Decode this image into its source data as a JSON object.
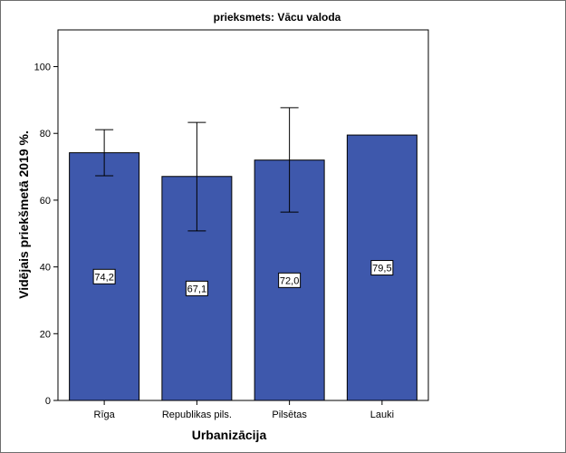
{
  "chart_data": {
    "type": "bar",
    "title": "prieksmets: Vācu valoda",
    "xlabel": "Urbanizācija",
    "ylabel": "Vidējais priekšmetā 2019 %.",
    "categories": [
      "Rīga",
      "Republikas pils.",
      "Pilsētas",
      "Lauki"
    ],
    "values": [
      74.2,
      67.1,
      72.0,
      79.5
    ],
    "data_labels": [
      "74,2",
      "67,1",
      "72,0",
      "79,5"
    ],
    "error_bars": [
      {
        "low": 67.3,
        "high": 81.1
      },
      {
        "low": 50.8,
        "high": 83.3
      },
      {
        "low": 56.4,
        "high": 87.7
      },
      null
    ],
    "ylim": [
      0,
      111
    ],
    "yticks": [
      0,
      20,
      40,
      60,
      80,
      100
    ],
    "ytick_labels": [
      "0",
      "20",
      "40",
      "60",
      "80",
      "100"
    ],
    "grid": false,
    "legend": "none",
    "bar_color": "#3e58ac",
    "bar_edge_color": "#000000"
  }
}
